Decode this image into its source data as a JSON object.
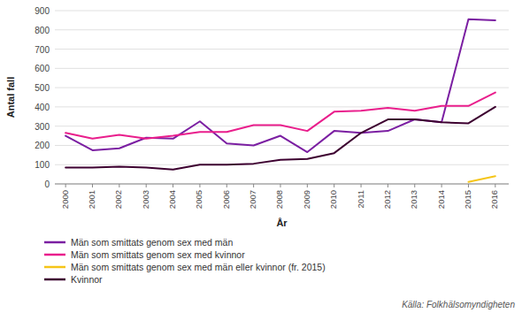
{
  "chart_data": {
    "type": "line",
    "xlabel": "År",
    "ylabel": "Antal fall",
    "source": "Källa: Folkhälsomyndigheten",
    "x": [
      2000,
      2001,
      2002,
      2003,
      2004,
      2005,
      2006,
      2007,
      2008,
      2009,
      2010,
      2011,
      2012,
      2013,
      2014,
      2015,
      2016
    ],
    "xlim": [
      1999.6,
      2016.5
    ],
    "xticks": [
      2000,
      2001,
      2002,
      2003,
      2004,
      2005,
      2006,
      2007,
      2008,
      2009,
      2010,
      2011,
      2012,
      2013,
      2014,
      2015,
      2016
    ],
    "ylim": [
      0,
      900
    ],
    "yticks": [
      0,
      100,
      200,
      300,
      400,
      500,
      600,
      700,
      800,
      900
    ],
    "grid": true,
    "legend": "bottom",
    "series": [
      {
        "name": "Män som smittats genom sex med män",
        "color": "#7b1fa2",
        "values": [
          250,
          175,
          185,
          240,
          235,
          325,
          210,
          200,
          250,
          165,
          275,
          265,
          275,
          335,
          320,
          855,
          850
        ]
      },
      {
        "name": "Män som smittats genom sex med kvinnor",
        "color": "#e91e8c",
        "values": [
          265,
          235,
          255,
          235,
          250,
          270,
          270,
          305,
          305,
          275,
          375,
          380,
          395,
          380,
          405,
          405,
          475
        ]
      },
      {
        "name": "Män som smittats genom sex med män eller kvinnor (fr. 2015)",
        "color": "#f5c518",
        "values": [
          null,
          null,
          null,
          null,
          null,
          null,
          null,
          null,
          null,
          null,
          null,
          null,
          null,
          null,
          null,
          10,
          40
        ]
      },
      {
        "name": "Kvinnor",
        "color": "#3d0030",
        "values": [
          85,
          85,
          90,
          85,
          75,
          100,
          100,
          105,
          125,
          130,
          160,
          265,
          335,
          335,
          320,
          315,
          400
        ]
      }
    ]
  }
}
